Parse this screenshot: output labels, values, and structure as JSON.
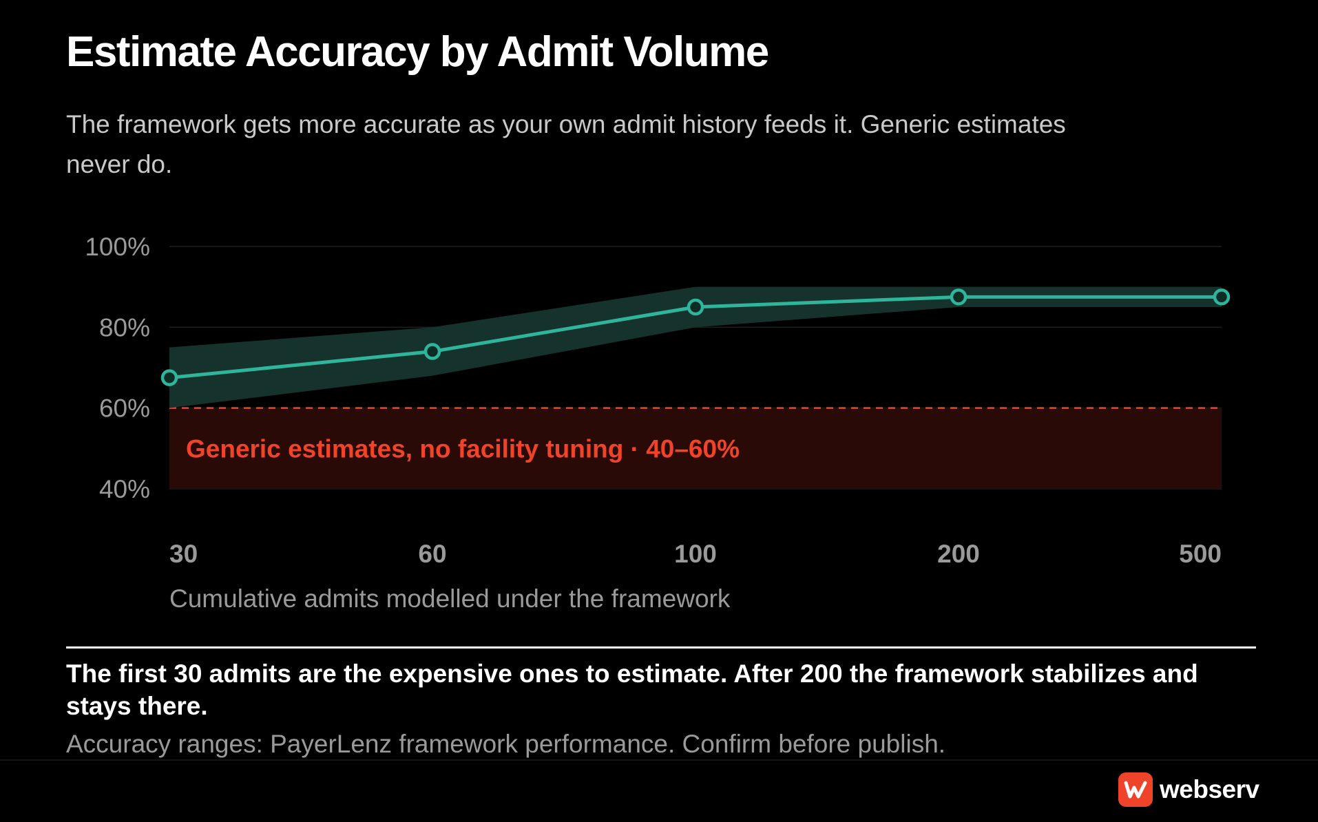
{
  "header": {
    "title": "Estimate Accuracy by Admit Volume",
    "subtitle": "The framework gets more accurate as your own admit history feeds it. Generic estimates never do."
  },
  "chart_data": {
    "type": "line",
    "categories": [
      "30",
      "60",
      "100",
      "200",
      "500"
    ],
    "series": [
      {
        "values": [
          67.5,
          74,
          85,
          87.5,
          87.5
        ],
        "band_low": [
          60,
          68,
          80,
          85,
          85
        ],
        "band_high": [
          75,
          80,
          90,
          90,
          90
        ],
        "color": "#2fb59b"
      }
    ],
    "y_ticks": [
      "100%",
      "80%",
      "60%",
      "40%"
    ],
    "ylim": [
      40,
      100
    ],
    "xlabel": "Cumulative admits modelled under the framework",
    "grid": true,
    "reference_band": {
      "label": "Generic estimates, no facility tuning · 40–60%",
      "low": 40,
      "high": 60,
      "color": "#f0442a",
      "fill": "#2a0a07"
    },
    "band_fill": "#15332c"
  },
  "footer": {
    "takeaway": "The first 30 admits are the expensive ones to estimate. After 200 the framework stabilizes and stays there.",
    "source": "Accuracy ranges: PayerLenz framework performance. Confirm before publish.",
    "brand": "webserv",
    "brand_color": "#f0442a",
    "brand_icon": "webserv-logo-icon"
  }
}
